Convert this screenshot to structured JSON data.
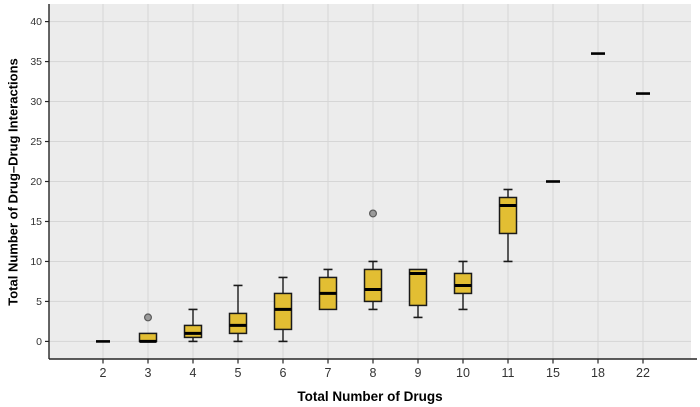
{
  "chart_data": {
    "type": "boxplot",
    "title": "",
    "xlabel": "Total Number of Drugs",
    "ylabel": "Total Number of Drug–Drug Interactions",
    "ylim": [
      -2.2,
      42.2
    ],
    "y_ticks": [
      0,
      5,
      10,
      15,
      20,
      25,
      30,
      35,
      40
    ],
    "categories": [
      "2",
      "3",
      "4",
      "5",
      "6",
      "7",
      "8",
      "9",
      "10",
      "11",
      "15",
      "18",
      "22"
    ],
    "grid": "on",
    "legend": "none",
    "series": [
      {
        "category": "2",
        "single_value": 0
      },
      {
        "category": "3",
        "min": 0,
        "q1": 0,
        "median": 0,
        "q3": 1,
        "max": 1,
        "outliers": [
          3
        ]
      },
      {
        "category": "4",
        "min": 0,
        "q1": 0.5,
        "median": 1,
        "q3": 2,
        "max": 4,
        "outliers": []
      },
      {
        "category": "5",
        "min": 0,
        "q1": 1,
        "median": 2,
        "q3": 3.5,
        "max": 7,
        "outliers": []
      },
      {
        "category": "6",
        "min": 0,
        "q1": 1.5,
        "median": 4,
        "q3": 6,
        "max": 8,
        "outliers": []
      },
      {
        "category": "7",
        "min": 4,
        "q1": 4,
        "median": 6,
        "q3": 8,
        "max": 9,
        "outliers": []
      },
      {
        "category": "8",
        "min": 4,
        "q1": 5,
        "median": 6.5,
        "q3": 9,
        "max": 10,
        "outliers": [
          16
        ]
      },
      {
        "category": "9",
        "min": 3,
        "q1": 4.5,
        "median": 8.5,
        "q3": 9,
        "max": 9,
        "outliers": []
      },
      {
        "category": "10",
        "min": 4,
        "q1": 6,
        "median": 7,
        "q3": 8.5,
        "max": 10,
        "outliers": []
      },
      {
        "category": "11",
        "min": 10,
        "q1": 13.5,
        "median": 17,
        "q3": 18,
        "max": 19,
        "outliers": []
      },
      {
        "category": "15",
        "single_value": 20
      },
      {
        "category": "18",
        "single_value": 36
      },
      {
        "category": "22",
        "single_value": 31
      }
    ],
    "colors": {
      "box_fill": "#E2BE33",
      "box_stroke": "#1a1a1a",
      "median": "#000000",
      "whisker": "#1a1a1a",
      "outlier_fill": "#9a9a9a",
      "outlier_stroke": "#5a5a5a",
      "plot_bg": "#ECECEC",
      "grid": "#D6D6D6",
      "axis": "#262626",
      "tick_label": "#333333",
      "page_bg": "#FFFFFF"
    }
  }
}
